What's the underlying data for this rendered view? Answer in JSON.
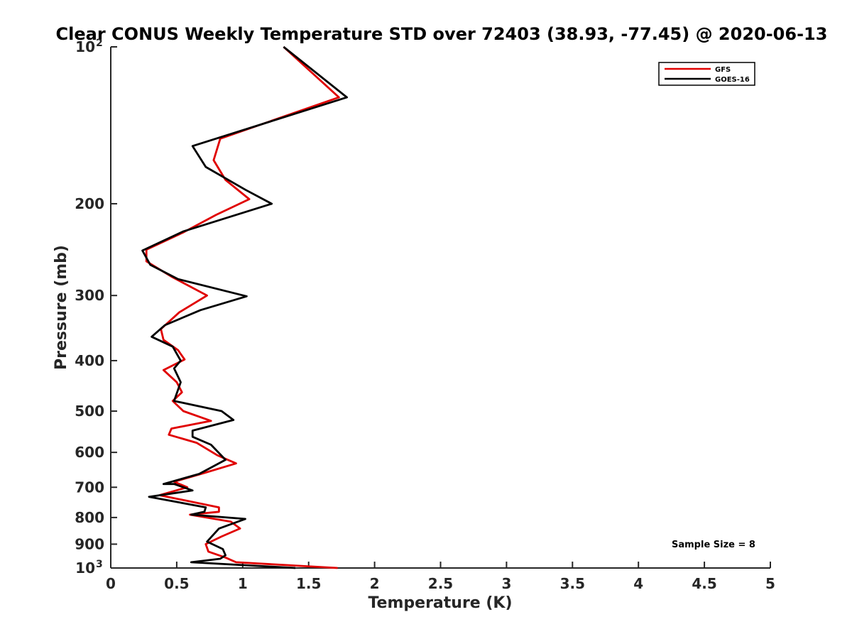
{
  "chart_data": {
    "type": "line",
    "title": "Clear CONUS Weekly Temperature STD over 72403 (38.93, -77.45) @ 2020-06-13",
    "xlabel": "Temperature (K)",
    "ylabel": "Pressure (mb)",
    "xlim": [
      0,
      5
    ],
    "ylim": [
      100,
      1000
    ],
    "y_scale": "log",
    "y_reversed": true,
    "grid": false,
    "legend_position": "top-right",
    "x_ticks": [
      "0",
      "0.5",
      "1",
      "1.5",
      "2",
      "2.5",
      "3",
      "3.5",
      "4",
      "4.5",
      "5"
    ],
    "y_ticks": [
      {
        "value": 100,
        "label": "10",
        "exp": "2"
      },
      {
        "value": 200,
        "label": "200"
      },
      {
        "value": 300,
        "label": "300"
      },
      {
        "value": 400,
        "label": "400"
      },
      {
        "value": 500,
        "label": "500"
      },
      {
        "value": 600,
        "label": "600"
      },
      {
        "value": 700,
        "label": "700"
      },
      {
        "value": 800,
        "label": "800"
      },
      {
        "value": 900,
        "label": "900"
      },
      {
        "value": 1000,
        "label": "10",
        "exp": "3"
      }
    ],
    "annotation": "Sample Size = 8",
    "series": [
      {
        "name": "GFS",
        "color": "#e00000",
        "points": [
          [
            1.31,
            100
          ],
          [
            1.73,
            125
          ],
          [
            0.83,
            150
          ],
          [
            0.78,
            165
          ],
          [
            0.87,
            180
          ],
          [
            1.05,
            196
          ],
          [
            0.8,
            210
          ],
          [
            0.55,
            227
          ],
          [
            0.27,
            245
          ],
          [
            0.27,
            258
          ],
          [
            0.46,
            276
          ],
          [
            0.73,
            300
          ],
          [
            0.52,
            323
          ],
          [
            0.38,
            348
          ],
          [
            0.4,
            365
          ],
          [
            0.51,
            382
          ],
          [
            0.56,
            398
          ],
          [
            0.4,
            417
          ],
          [
            0.5,
            440
          ],
          [
            0.54,
            460
          ],
          [
            0.47,
            478
          ],
          [
            0.55,
            500
          ],
          [
            0.76,
            522
          ],
          [
            0.46,
            540
          ],
          [
            0.44,
            555
          ],
          [
            0.65,
            575
          ],
          [
            0.81,
            608
          ],
          [
            0.95,
            630
          ],
          [
            0.7,
            658
          ],
          [
            0.48,
            683
          ],
          [
            0.58,
            700
          ],
          [
            0.37,
            725
          ],
          [
            0.82,
            765
          ],
          [
            0.82,
            780
          ],
          [
            0.6,
            790
          ],
          [
            0.91,
            815
          ],
          [
            0.98,
            840
          ],
          [
            0.84,
            870
          ],
          [
            0.72,
            900
          ],
          [
            0.74,
            930
          ],
          [
            0.87,
            955
          ],
          [
            0.95,
            975
          ],
          [
            1.72,
            1000
          ]
        ]
      },
      {
        "name": "GOES-16",
        "color": "#000000",
        "points": [
          [
            1.31,
            100
          ],
          [
            1.79,
            125
          ],
          [
            0.62,
            155
          ],
          [
            0.72,
            170
          ],
          [
            1.02,
            188
          ],
          [
            1.22,
            200
          ],
          [
            0.55,
            226
          ],
          [
            0.24,
            246
          ],
          [
            0.3,
            262
          ],
          [
            0.51,
            279
          ],
          [
            1.03,
            301
          ],
          [
            0.68,
            320
          ],
          [
            0.41,
            342
          ],
          [
            0.31,
            360
          ],
          [
            0.47,
            376
          ],
          [
            0.51,
            392
          ],
          [
            0.53,
            400
          ],
          [
            0.48,
            414
          ],
          [
            0.53,
            440
          ],
          [
            0.48,
            478
          ],
          [
            0.84,
            500
          ],
          [
            0.93,
            520
          ],
          [
            0.62,
            545
          ],
          [
            0.62,
            560
          ],
          [
            0.76,
            580
          ],
          [
            0.87,
            620
          ],
          [
            0.67,
            660
          ],
          [
            0.4,
            690
          ],
          [
            0.49,
            690
          ],
          [
            0.48,
            690
          ],
          [
            0.62,
            710
          ],
          [
            0.29,
            730
          ],
          [
            0.72,
            765
          ],
          [
            0.71,
            780
          ],
          [
            0.61,
            790
          ],
          [
            1.02,
            805
          ],
          [
            0.82,
            840
          ],
          [
            0.73,
            890
          ],
          [
            0.85,
            920
          ],
          [
            0.87,
            945
          ],
          [
            0.83,
            960
          ],
          [
            0.61,
            975
          ],
          [
            1.4,
            1000
          ]
        ]
      }
    ]
  }
}
